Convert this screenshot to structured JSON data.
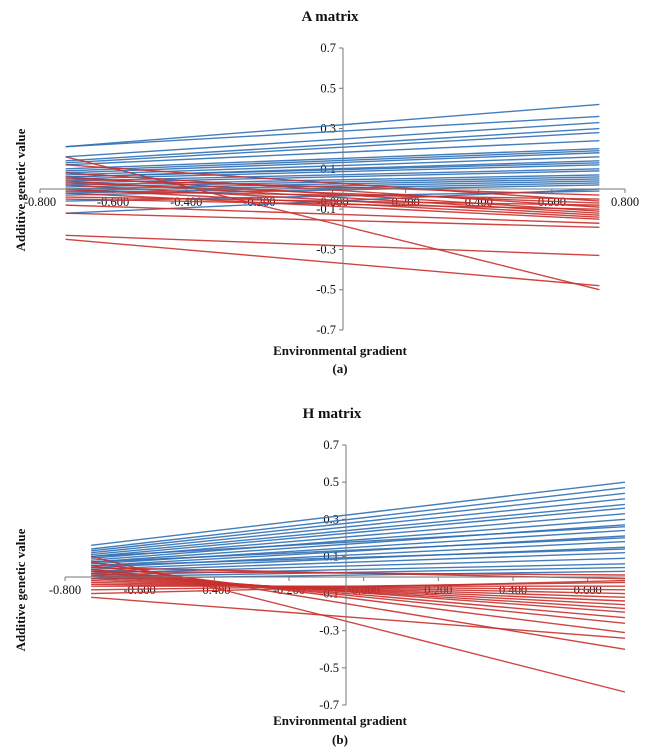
{
  "chart_data": [
    {
      "type": "line",
      "title": "A matrix",
      "xlabel": "Environmental gradient",
      "ylabel": "Additive genetic value",
      "caption": "(a)",
      "xlim": [
        -0.8,
        0.8
      ],
      "ylim": [
        -0.7,
        0.7
      ],
      "x_ticks": [
        "-0.800",
        "-0.600",
        "-0.400",
        "-0.200",
        "-0.000",
        "0.200",
        "0.400",
        "0.600",
        "0.800"
      ],
      "y_ticks": [
        "0.7",
        "0.5",
        "0.3",
        "0.1",
        "-0.1",
        "-0.3",
        "-0.5",
        "-0.7"
      ],
      "x_range": [
        -0.73,
        0.73
      ],
      "colors": {
        "positive_slope": "#2f6fb5",
        "negative_slope": "#c9302c"
      },
      "blue_lines": [
        [
          0.21,
          0.42
        ],
        [
          0.21,
          0.36
        ],
        [
          0.16,
          0.33
        ],
        [
          0.14,
          0.3
        ],
        [
          0.13,
          0.28
        ],
        [
          0.12,
          0.24
        ],
        [
          0.1,
          0.2
        ],
        [
          0.08,
          0.18
        ],
        [
          0.07,
          0.16
        ],
        [
          0.06,
          0.14
        ],
        [
          0.05,
          0.12
        ],
        [
          0.04,
          0.1
        ],
        [
          0.03,
          0.09
        ],
        [
          0.02,
          0.07
        ],
        [
          0.01,
          0.06
        ],
        [
          0.0,
          0.05
        ],
        [
          -0.01,
          0.04
        ],
        [
          -0.02,
          0.03
        ],
        [
          -0.03,
          0.02
        ],
        [
          -0.06,
          -0.01
        ],
        [
          -0.12,
          0.0
        ],
        [
          0.06,
          0.13
        ],
        [
          0.09,
          0.19
        ]
      ],
      "red_lines": [
        [
          0.16,
          -0.5
        ],
        [
          0.12,
          -0.06
        ],
        [
          0.08,
          -0.09
        ],
        [
          0.06,
          -0.11
        ],
        [
          0.04,
          -0.12
        ],
        [
          0.02,
          -0.13
        ],
        [
          0.0,
          -0.14
        ],
        [
          -0.02,
          -0.15
        ],
        [
          -0.04,
          -0.08
        ],
        [
          -0.05,
          -0.1
        ],
        [
          -0.08,
          -0.17
        ],
        [
          -0.12,
          -0.19
        ],
        [
          -0.23,
          -0.33
        ],
        [
          -0.25,
          -0.48
        ],
        [
          0.03,
          -0.07
        ],
        [
          -0.01,
          -0.05
        ],
        [
          0.05,
          -0.03
        ]
      ]
    },
    {
      "type": "line",
      "title": "H matrix",
      "xlabel": "Environmental gradient",
      "ylabel": "Additive genetic value",
      "caption": "(b)",
      "xlim": [
        -0.8,
        0.7
      ],
      "ylim": [
        -0.7,
        0.7
      ],
      "x_ticks": [
        "-0.800",
        "-0.600",
        "-0.400",
        "-0.200",
        "-0.000",
        "0.200",
        "0.400",
        "0.600"
      ],
      "y_ticks": [
        "0.7",
        "0.5",
        "0.3",
        "0.1",
        "-0.1",
        "-0.3",
        "-0.5",
        "-0.7"
      ],
      "x_range": [
        -0.73,
        0.7
      ],
      "colors": {
        "positive_slope": "#2f6fb5",
        "negative_slope": "#c9302c"
      },
      "blue_lines": [
        [
          0.16,
          0.5
        ],
        [
          0.14,
          0.47
        ],
        [
          0.13,
          0.44
        ],
        [
          0.12,
          0.41
        ],
        [
          0.11,
          0.38
        ],
        [
          0.1,
          0.36
        ],
        [
          0.09,
          0.33
        ],
        [
          0.08,
          0.3
        ],
        [
          0.07,
          0.27
        ],
        [
          0.06,
          0.24
        ],
        [
          0.05,
          0.21
        ],
        [
          0.04,
          0.18
        ],
        [
          0.03,
          0.15
        ],
        [
          0.02,
          0.12
        ],
        [
          0.01,
          0.09
        ],
        [
          0.0,
          0.06
        ],
        [
          -0.01,
          0.04
        ],
        [
          -0.02,
          0.02
        ],
        [
          0.05,
          0.14
        ],
        [
          0.07,
          0.2
        ],
        [
          0.1,
          0.26
        ]
      ],
      "red_lines": [
        [
          0.1,
          -0.63
        ],
        [
          0.07,
          -0.4
        ],
        [
          0.05,
          -0.31
        ],
        [
          0.03,
          -0.26
        ],
        [
          0.02,
          -0.23
        ],
        [
          0.01,
          -0.2
        ],
        [
          0.0,
          -0.18
        ],
        [
          -0.01,
          -0.16
        ],
        [
          -0.02,
          -0.14
        ],
        [
          -0.03,
          -0.12
        ],
        [
          -0.04,
          -0.1
        ],
        [
          -0.05,
          -0.08
        ],
        [
          -0.06,
          -0.06
        ],
        [
          -0.08,
          -0.04
        ],
        [
          -0.1,
          -0.03
        ],
        [
          -0.12,
          -0.34
        ],
        [
          0.04,
          -0.02
        ],
        [
          0.02,
          0.0
        ]
      ]
    }
  ]
}
